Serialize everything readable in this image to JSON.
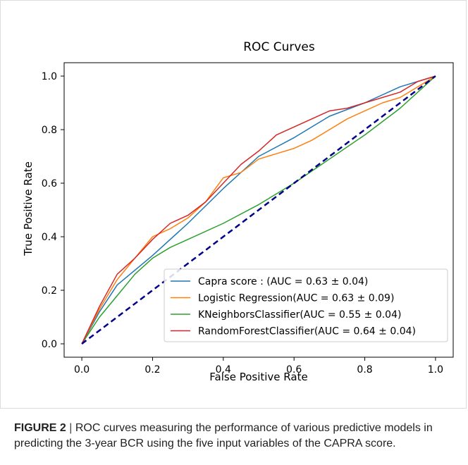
{
  "chart_data": {
    "type": "line",
    "title": "ROC  Curves",
    "xlabel": "False Positive Rate",
    "ylabel": "True Positive Rate",
    "xlim": [
      -0.05,
      1.05
    ],
    "ylim": [
      -0.05,
      1.05
    ],
    "xticks": [
      "0.0",
      "0.2",
      "0.4",
      "0.6",
      "0.8",
      "1.0"
    ],
    "yticks": [
      "0.0",
      "0.2",
      "0.4",
      "0.6",
      "0.8",
      "1.0"
    ],
    "grid": false,
    "legend_position": "lower-right",
    "series": [
      {
        "name": "Capra score : (AUC = 0.63 ± 0.04)",
        "color": "#1f77b4",
        "x": [
          0.0,
          0.05,
          0.1,
          0.2,
          0.3,
          0.4,
          0.5,
          0.6,
          0.7,
          0.8,
          0.9,
          1.0
        ],
        "y": [
          0.0,
          0.12,
          0.22,
          0.33,
          0.45,
          0.58,
          0.7,
          0.77,
          0.85,
          0.9,
          0.96,
          1.0
        ]
      },
      {
        "name": "Logistic Regression(AUC = 0.63 ± 0.09)",
        "color": "#ff7f0e",
        "x": [
          0.0,
          0.05,
          0.1,
          0.15,
          0.2,
          0.25,
          0.3,
          0.35,
          0.4,
          0.45,
          0.5,
          0.55,
          0.6,
          0.65,
          0.7,
          0.75,
          0.8,
          0.85,
          0.9,
          0.95,
          1.0
        ],
        "y": [
          0.0,
          0.13,
          0.24,
          0.32,
          0.4,
          0.43,
          0.47,
          0.53,
          0.62,
          0.64,
          0.69,
          0.71,
          0.73,
          0.76,
          0.8,
          0.84,
          0.87,
          0.9,
          0.92,
          0.96,
          1.0
        ]
      },
      {
        "name": "KNeighborsClassifier(AUC = 0.55 ± 0.04)",
        "color": "#2ca02c",
        "x": [
          0.0,
          0.05,
          0.1,
          0.15,
          0.2,
          0.25,
          0.3,
          0.4,
          0.5,
          0.6,
          0.7,
          0.8,
          0.9,
          1.0
        ],
        "y": [
          0.0,
          0.1,
          0.18,
          0.26,
          0.32,
          0.36,
          0.39,
          0.45,
          0.52,
          0.6,
          0.69,
          0.78,
          0.88,
          1.0
        ]
      },
      {
        "name": "RandomForestClassifier(AUC = 0.64 ± 0.04)",
        "color": "#d62728",
        "x": [
          0.0,
          0.05,
          0.1,
          0.15,
          0.2,
          0.25,
          0.3,
          0.35,
          0.4,
          0.45,
          0.5,
          0.55,
          0.6,
          0.65,
          0.7,
          0.75,
          0.8,
          0.85,
          0.9,
          0.95,
          1.0
        ],
        "y": [
          0.0,
          0.14,
          0.26,
          0.32,
          0.39,
          0.45,
          0.48,
          0.53,
          0.6,
          0.67,
          0.72,
          0.78,
          0.81,
          0.84,
          0.87,
          0.88,
          0.9,
          0.92,
          0.94,
          0.98,
          1.0
        ]
      }
    ],
    "reference_line": {
      "color": "#00008b",
      "x": [
        0,
        1
      ],
      "y": [
        0,
        1
      ]
    }
  },
  "caption": {
    "label": "FIGURE 2",
    "separator": "|",
    "text": "ROC curves measuring the performance of various predictive models in predicting the 3-year BCR using the five input variables of the CAPRA score."
  }
}
